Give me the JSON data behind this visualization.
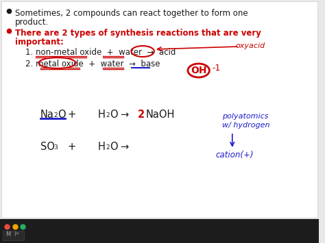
{
  "bg_color": "#e8e8e8",
  "slide_bg": "#f5f5f2",
  "red": "#cc0000",
  "blue_dark": "#1a1acc",
  "black": "#1a1a1a",
  "fs_body": 8.5,
  "fs_bold": 8.5,
  "fs_eq": 10.5,
  "fs_sub": 6.5,
  "fs_hand": 8.0,
  "fs_hand_sm": 7.5,
  "bullet1_line1": "Sometimes, 2 compounds can react together to form one",
  "bullet1_line2": "product.",
  "bullet2_line1": "There are 2 types of synthesis reactions that are very",
  "bullet2_line2": "important:",
  "item1": "1. non-metal oxide  +  water  →  acid",
  "item2": "2. metal oxide  +  water  →  base",
  "handwrite_oxyacid": "oxyacid",
  "handwrite_OH": "OH",
  "handwrite_neg1": "-1",
  "handwrite_poly": "polyatomics",
  "handwrite_wh": "w/ hydrogen",
  "handwrite_cation": "cation(+)"
}
